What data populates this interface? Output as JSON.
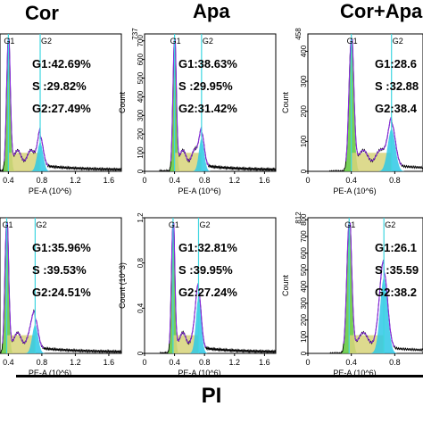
{
  "column_titles": [
    "Cor",
    "Apa",
    "Cor+Apa"
  ],
  "bottom_label": "PI",
  "chart_data": [
    {
      "type": "area",
      "column": "Cor",
      "row": 1,
      "xlabel": "PE-A (10^6)",
      "ylabel": "",
      "ymax_label": "",
      "xticks": [
        "0.4",
        "0.8",
        "1.2",
        "1.6"
      ],
      "yticks": [],
      "gate_labels": [
        "G1",
        "G2"
      ],
      "stats": [
        "G1:42.69%",
        "S :29.82%",
        "G2:27.49%"
      ],
      "g1_peak": 0.4,
      "g2_peak": 0.78,
      "g1_height": 1.0,
      "g2_height": 0.22
    },
    {
      "type": "area",
      "column": "Apa",
      "row": 1,
      "xlabel": "PE-A (10^6)",
      "ylabel": "Count",
      "ymax_label": "737",
      "xticks": [
        "0",
        "0.4",
        "0.8",
        "1.2",
        "1.6"
      ],
      "yticks": [
        "0",
        "100",
        "200",
        "300",
        "400",
        "500",
        "600",
        "700"
      ],
      "ymax": 737,
      "gate_labels": [
        "G1",
        "G2"
      ],
      "stats": [
        "G1:38.63%",
        "S :29.95%",
        "G2:31.42%"
      ],
      "g1_peak": 0.4,
      "g2_peak": 0.76,
      "g1_height": 1.0,
      "g2_height": 0.25
    },
    {
      "type": "area",
      "column": "Cor+Apa",
      "row": 1,
      "xlabel": "PE-A (10^6)",
      "ylabel": "Count",
      "ymax_label": "458",
      "xticks": [
        "0",
        "0.4",
        "0.8"
      ],
      "yticks": [
        "0",
        "100",
        "200",
        "300",
        "400"
      ],
      "ymax": 458,
      "gate_labels": [
        "G1",
        "G2"
      ],
      "stats": [
        "G1:28.6",
        "S :32.88",
        "G2:38.4"
      ],
      "g1_peak": 0.4,
      "g2_peak": 0.77,
      "g1_height": 1.0,
      "g2_height": 0.32
    },
    {
      "type": "area",
      "column": "Cor",
      "row": 2,
      "xlabel": "PE-A (10^6)",
      "ylabel": "",
      "ymax_label": "",
      "xticks": [
        "0.4",
        "0.8",
        "1.2",
        "1.6"
      ],
      "yticks": [],
      "gate_labels": [
        "G1",
        "G2"
      ],
      "stats": [
        "G1:35.96%",
        "S :39.53%",
        "G2:24.51%"
      ],
      "g1_peak": 0.38,
      "g2_peak": 0.72,
      "g1_height": 1.0,
      "g2_height": 0.22
    },
    {
      "type": "area",
      "column": "Apa",
      "row": 2,
      "xlabel": "PE-A (10^6)",
      "ylabel": "Count (10^3)",
      "ymax_label": "",
      "xticks": [
        "0",
        "0.4",
        "0.8",
        "1.2",
        "1.6"
      ],
      "yticks": [
        "0",
        "0.4",
        "0.8",
        "1.2"
      ],
      "ymax": 1.2,
      "gate_labels": [
        "G1",
        "G2"
      ],
      "stats": [
        "G1:32.81%",
        "S :39.95%",
        "G2:27.24%"
      ],
      "g1_peak": 0.38,
      "g2_peak": 0.72,
      "g1_height": 1.0,
      "g2_height": 0.43
    },
    {
      "type": "area",
      "column": "Cor+Apa",
      "row": 2,
      "xlabel": "PE-A (10^6)",
      "ylabel": "Count",
      "ymax_label": "812",
      "xticks": [
        "0",
        "0.4",
        "0.8"
      ],
      "yticks": [
        "0",
        "100",
        "200",
        "300",
        "400",
        "500",
        "600",
        "700",
        "800"
      ],
      "ymax": 812,
      "gate_labels": [
        "G1",
        "G2"
      ],
      "stats": [
        "G1:26.1",
        "S :35.59",
        "G2:38.2"
      ],
      "g1_peak": 0.38,
      "g2_peak": 0.7,
      "g1_height": 1.0,
      "g2_height": 0.58
    }
  ],
  "colors": {
    "g1": "#5ec83a",
    "s": "#d7d37a",
    "g2": "#2ec8e6",
    "gate": "#3fd6e0",
    "fit": "#8a2be2",
    "trace": "#000000"
  }
}
